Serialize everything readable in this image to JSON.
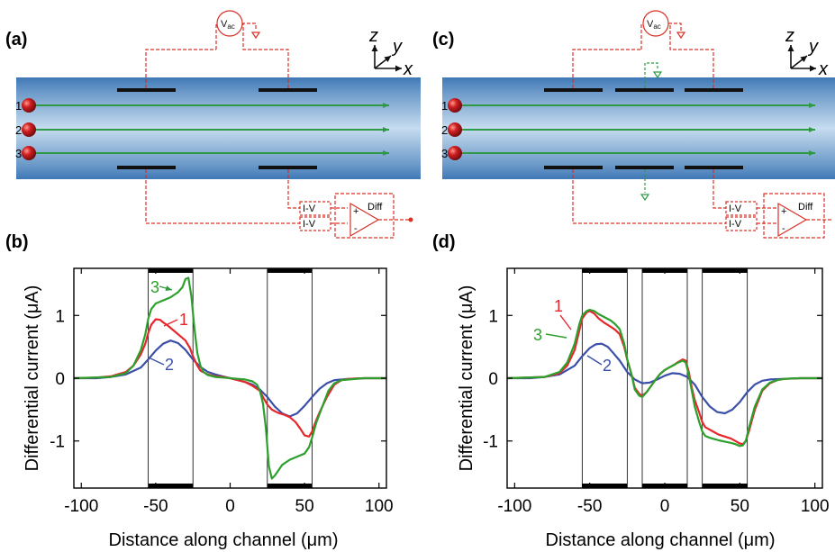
{
  "panels": {
    "a": {
      "label": "(a)"
    },
    "b": {
      "label": "(b)"
    },
    "c": {
      "label": "(c)"
    },
    "d": {
      "label": "(d)"
    }
  },
  "schematic": {
    "vac_label": "V",
    "vac_sub": "ac",
    "iv_label": "I-V",
    "diff_label": "Diff",
    "plus": "+",
    "minus": "-",
    "particles": [
      "1",
      "2",
      "3"
    ],
    "axes": {
      "z": "z",
      "y": "y",
      "x": "x"
    }
  },
  "colors": {
    "channel_edge": "#3f78b6",
    "channel_center": "#c6dcef",
    "circuit": "#d93025",
    "particle": "#c0141a",
    "stream": "#2e9a46",
    "series_1": "#e8262c",
    "series_2": "#3b4fa8",
    "series_3": "#2ca02c"
  },
  "chart_data": [
    {
      "panel": "(b)",
      "type": "line",
      "xlabel": "Distance along channel (μm)",
      "ylabel": "Differential current (μA)",
      "xlim": [
        -105,
        105
      ],
      "ylim": [
        -1.75,
        1.75
      ],
      "xticks": [
        -100,
        -50,
        0,
        50,
        100
      ],
      "yticks": [
        -1,
        0,
        1
      ],
      "electrodes_um": [
        [
          -55,
          -25
        ],
        [
          25,
          55
        ]
      ],
      "series": [
        {
          "name": "1",
          "x": [
            -105,
            -90,
            -80,
            -70,
            -65,
            -60,
            -57,
            -55,
            -53,
            -50,
            -47,
            -45,
            -42,
            -38,
            -35,
            -30,
            -27,
            -25,
            -22,
            -20,
            -15,
            -10,
            -5,
            0,
            5,
            10,
            15,
            20,
            22,
            25,
            28,
            32,
            36,
            40,
            44,
            47,
            50,
            53,
            55,
            57,
            60,
            65,
            70,
            75,
            80,
            90,
            105
          ],
          "y": [
            0,
            0.01,
            0.03,
            0.1,
            0.2,
            0.38,
            0.55,
            0.72,
            0.85,
            0.94,
            0.93,
            0.89,
            0.84,
            0.76,
            0.7,
            0.6,
            0.48,
            0.35,
            0.2,
            0.12,
            0.06,
            0.03,
            0.02,
            0,
            -0.03,
            -0.06,
            -0.12,
            -0.2,
            -0.3,
            -0.42,
            -0.5,
            -0.55,
            -0.58,
            -0.62,
            -0.7,
            -0.8,
            -0.91,
            -0.93,
            -0.85,
            -0.72,
            -0.55,
            -0.3,
            -0.1,
            -0.03,
            -0.01,
            0,
            0
          ]
        },
        {
          "name": "2",
          "x": [
            -105,
            -90,
            -80,
            -70,
            -60,
            -55,
            -50,
            -45,
            -40,
            -35,
            -30,
            -25,
            -20,
            -15,
            -10,
            -5,
            0,
            5,
            10,
            15,
            20,
            25,
            30,
            35,
            40,
            45,
            50,
            55,
            60,
            65,
            70,
            80,
            90,
            105
          ],
          "y": [
            0,
            0,
            0.02,
            0.06,
            0.17,
            0.3,
            0.44,
            0.55,
            0.6,
            0.56,
            0.45,
            0.3,
            0.18,
            0.1,
            0.06,
            0.03,
            0,
            -0.03,
            -0.06,
            -0.1,
            -0.18,
            -0.3,
            -0.45,
            -0.56,
            -0.61,
            -0.56,
            -0.44,
            -0.3,
            -0.17,
            -0.08,
            -0.03,
            -0.01,
            0,
            0
          ]
        },
        {
          "name": "3",
          "x": [
            -105,
            -80,
            -70,
            -65,
            -60,
            -57,
            -55,
            -53,
            -50,
            -45,
            -40,
            -35,
            -32,
            -30,
            -28,
            -26,
            -24,
            -22,
            -20,
            -18,
            -15,
            -10,
            -5,
            0,
            5,
            10,
            15,
            18,
            20,
            22,
            24,
            26,
            28,
            30,
            35,
            40,
            45,
            50,
            53,
            55,
            58,
            62,
            66,
            70,
            75,
            80,
            90,
            105
          ],
          "y": [
            0,
            0.02,
            0.08,
            0.2,
            0.45,
            0.7,
            0.95,
            1.1,
            1.19,
            1.24,
            1.29,
            1.37,
            1.45,
            1.58,
            1.6,
            1.3,
            0.8,
            0.4,
            0.2,
            0.1,
            0.05,
            0.02,
            0.01,
            0,
            -0.01,
            -0.02,
            -0.05,
            -0.1,
            -0.2,
            -0.4,
            -0.8,
            -1.4,
            -1.6,
            -1.55,
            -1.38,
            -1.3,
            -1.25,
            -1.2,
            -1.1,
            -0.95,
            -0.7,
            -0.45,
            -0.2,
            -0.08,
            -0.03,
            -0.02,
            0,
            0
          ]
        }
      ]
    },
    {
      "panel": "(d)",
      "type": "line",
      "xlabel": "Distance along channel (μm)",
      "ylabel": "Differential current (μA)",
      "xlim": [
        -105,
        105
      ],
      "ylim": [
        -1.75,
        1.75
      ],
      "xticks": [
        -100,
        -50,
        0,
        50,
        100
      ],
      "yticks": [
        -1,
        0,
        1
      ],
      "electrodes_um": [
        [
          -55,
          -25
        ],
        [
          -15,
          15
        ],
        [
          25,
          55
        ]
      ],
      "series": [
        {
          "name": "1",
          "x": [
            -105,
            -80,
            -70,
            -65,
            -60,
            -57,
            -55,
            -52,
            -50,
            -47,
            -44,
            -40,
            -36,
            -33,
            -30,
            -27,
            -25,
            -22,
            -20,
            -17,
            -15,
            -12,
            -9,
            -6,
            -3,
            0,
            3,
            6,
            9,
            12,
            14,
            16,
            18,
            20,
            23,
            25,
            27,
            30,
            33,
            36,
            40,
            44,
            47,
            50,
            52,
            54,
            56,
            60,
            65,
            70,
            75,
            80,
            90,
            105
          ],
          "y": [
            0,
            0.02,
            0.08,
            0.2,
            0.45,
            0.75,
            0.95,
            1.05,
            1.07,
            1.03,
            0.95,
            0.88,
            0.82,
            0.77,
            0.7,
            0.5,
            0.3,
            0.05,
            -0.15,
            -0.25,
            -0.28,
            -0.22,
            -0.12,
            -0.02,
            0.07,
            0.13,
            0.17,
            0.21,
            0.26,
            0.3,
            0.28,
            0.1,
            -0.15,
            -0.35,
            -0.55,
            -0.7,
            -0.78,
            -0.82,
            -0.86,
            -0.9,
            -0.93,
            -0.96,
            -1.0,
            -1.04,
            -1.05,
            -1.0,
            -0.85,
            -0.5,
            -0.2,
            -0.08,
            -0.03,
            -0.01,
            0,
            0
          ]
        },
        {
          "name": "2",
          "x": [
            -105,
            -90,
            -80,
            -70,
            -60,
            -55,
            -50,
            -46,
            -42,
            -38,
            -35,
            -30,
            -25,
            -20,
            -15,
            -10,
            -5,
            0,
            5,
            10,
            15,
            20,
            25,
            30,
            35,
            40,
            45,
            50,
            55,
            60,
            65,
            70,
            80,
            90,
            105
          ],
          "y": [
            0,
            0,
            0.02,
            0.06,
            0.2,
            0.35,
            0.48,
            0.54,
            0.55,
            0.5,
            0.42,
            0.28,
            0.1,
            -0.02,
            -0.08,
            -0.07,
            -0.02,
            0.04,
            0.08,
            0.07,
            0.02,
            -0.1,
            -0.3,
            -0.45,
            -0.54,
            -0.56,
            -0.5,
            -0.38,
            -0.22,
            -0.1,
            -0.04,
            -0.02,
            -0.01,
            0,
            0
          ]
        },
        {
          "name": "3",
          "x": [
            -105,
            -80,
            -70,
            -65,
            -60,
            -57,
            -55,
            -52,
            -50,
            -47,
            -44,
            -40,
            -36,
            -33,
            -30,
            -27,
            -25,
            -22,
            -20,
            -17,
            -15,
            -12,
            -9,
            -6,
            -3,
            0,
            3,
            6,
            9,
            12,
            14,
            16,
            18,
            20,
            23,
            25,
            27,
            30,
            33,
            36,
            40,
            44,
            47,
            50,
            52,
            54,
            56,
            60,
            65,
            70,
            75,
            80,
            90,
            105
          ],
          "y": [
            0,
            0.02,
            0.1,
            0.25,
            0.55,
            0.85,
            1.0,
            1.07,
            1.09,
            1.07,
            1.02,
            0.97,
            0.92,
            0.86,
            0.78,
            0.55,
            0.3,
            0.05,
            -0.18,
            -0.28,
            -0.3,
            -0.22,
            -0.12,
            -0.02,
            0.07,
            0.13,
            0.17,
            0.21,
            0.25,
            0.28,
            0.25,
            0.05,
            -0.2,
            -0.45,
            -0.7,
            -0.85,
            -0.92,
            -0.95,
            -0.97,
            -0.99,
            -1.01,
            -1.03,
            -1.05,
            -1.08,
            -1.07,
            -1.0,
            -0.8,
            -0.45,
            -0.18,
            -0.07,
            -0.03,
            -0.01,
            0,
            0
          ]
        }
      ]
    }
  ]
}
